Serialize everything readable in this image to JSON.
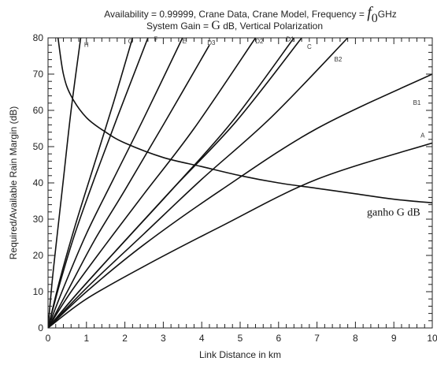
{
  "chart_data": {
    "type": "line",
    "title_line1": {
      "prefix": "Availability = 0.99999,  Crane Data, Crane Model,  Frequency = ",
      "symbol": "f",
      "subscript": "0",
      "suffix": "GHz"
    },
    "title_line2": {
      "prefix": "System Gain = ",
      "symbol": "G",
      "suffix": " dB,  Vertical Polarization"
    },
    "xlabel": "Link Distance in km",
    "ylabel": "Required/Available Rain Margin (dB)",
    "xlim": [
      0,
      10
    ],
    "ylim": [
      0,
      80
    ],
    "xticks": [
      "0",
      "1",
      "2",
      "3",
      "4",
      "5",
      "6",
      "7",
      "8",
      "9",
      "10"
    ],
    "yticks": [
      "0",
      "10",
      "20",
      "30",
      "40",
      "50",
      "60",
      "70",
      "80"
    ],
    "grid": false,
    "series": [
      {
        "name": "H",
        "x": [
          0,
          0.1,
          0.2,
          0.4,
          0.6,
          0.85
        ],
        "y": [
          0,
          12,
          22,
          41,
          60,
          80
        ]
      },
      {
        "name": "G",
        "x": [
          0,
          0.3,
          0.7,
          1.2,
          1.7,
          2.2
        ],
        "y": [
          0,
          13,
          28,
          45,
          62,
          80
        ]
      },
      {
        "name": "F",
        "x": [
          0,
          0.3,
          0.7,
          1.2,
          1.8,
          2.6
        ],
        "y": [
          0,
          12,
          26,
          41,
          58,
          80
        ]
      },
      {
        "name": "E",
        "x": [
          0,
          0.4,
          1,
          1.7,
          2.5,
          3.5
        ],
        "y": [
          0,
          11,
          26,
          41,
          58,
          80
        ]
      },
      {
        "name": "D3",
        "x": [
          0,
          0.5,
          1.2,
          2,
          3,
          4.2
        ],
        "y": [
          0,
          10,
          24,
          38,
          56,
          78
        ]
      },
      {
        "name": "D2",
        "x": [
          0,
          0.6,
          1.5,
          2.5,
          3.8,
          5.4
        ],
        "y": [
          0,
          10,
          23,
          37,
          55,
          80
        ]
      },
      {
        "name": "D1",
        "x": [
          0,
          0.8,
          2,
          3.3,
          4.8,
          6.4
        ],
        "y": [
          0,
          10,
          24,
          39,
          57,
          80
        ]
      },
      {
        "name": "C",
        "x": [
          0,
          0.8,
          2,
          3.3,
          4.9,
          6.6
        ],
        "y": [
          0,
          10,
          24,
          39,
          57,
          80
        ]
      },
      {
        "name": "B2",
        "x": [
          0,
          1,
          2.5,
          4,
          5.8,
          7.8
        ],
        "y": [
          0,
          11,
          26,
          41,
          58,
          80
        ]
      },
      {
        "name": "B1",
        "x": [
          0,
          1,
          2.5,
          4.5,
          7,
          10
        ],
        "y": [
          0,
          10,
          23,
          38,
          55,
          70
        ]
      },
      {
        "name": "A",
        "x": [
          0,
          1,
          2.5,
          4.5,
          7,
          10
        ],
        "y": [
          0,
          8,
          17,
          28,
          41,
          51
        ]
      },
      {
        "name": "ganho G dB",
        "x": [
          0.26,
          0.4,
          0.6,
          1,
          1.5,
          2,
          3,
          4,
          5,
          6,
          7,
          8,
          9,
          10
        ],
        "y": [
          80,
          70,
          64,
          58,
          54,
          51,
          47,
          44.5,
          42,
          40,
          38.5,
          37,
          35.5,
          34.5
        ]
      }
    ],
    "curve_labels": [
      {
        "text": "H",
        "x": 1.0,
        "y": 77.5
      },
      {
        "text": "G",
        "x": 2.15,
        "y": 78.5
      },
      {
        "text": "F",
        "x": 2.8,
        "y": 79
      },
      {
        "text": "E",
        "x": 3.55,
        "y": 78.5
      },
      {
        "text": "D3",
        "x": 4.25,
        "y": 78
      },
      {
        "text": "D2",
        "x": 5.5,
        "y": 78.5
      },
      {
        "text": "D1",
        "x": 6.3,
        "y": 79
      },
      {
        "text": "C",
        "x": 6.8,
        "y": 77
      },
      {
        "text": "B2",
        "x": 7.55,
        "y": 73.5
      },
      {
        "text": "B1",
        "x": 9.6,
        "y": 61.5
      },
      {
        "text": "A",
        "x": 9.75,
        "y": 52.5
      }
    ],
    "annotation": {
      "text": "ganho G dB",
      "x": 8.3,
      "y": 31
    }
  }
}
